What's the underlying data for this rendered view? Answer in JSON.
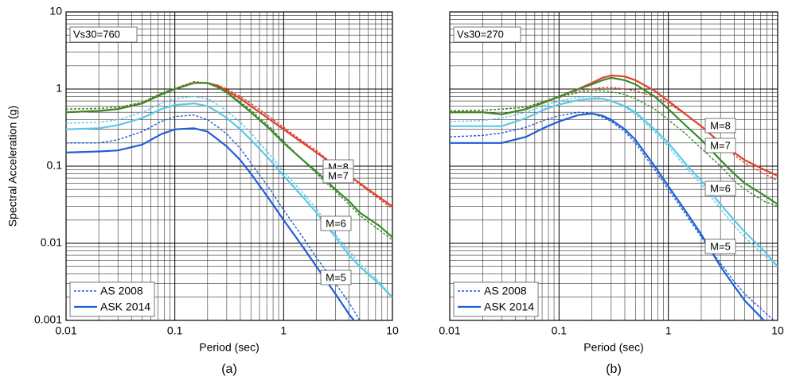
{
  "chart_data": [
    {
      "type": "line",
      "annotation": "Vs30=760",
      "caption": "(a)",
      "xlabel": "Period (sec)",
      "ylabel": "Spectral Acceleration (g)",
      "log_x": true,
      "log_y": true,
      "grid": true,
      "minor_grid": true,
      "ytick_labels": true,
      "xlim": [
        0.01,
        10
      ],
      "ylim": [
        0.001,
        10
      ],
      "xticks": [
        0.01,
        0.1,
        1,
        10
      ],
      "yticks": [
        0.001,
        0.01,
        0.1,
        1,
        10
      ],
      "x": [
        0.01,
        0.02,
        0.03,
        0.05,
        0.075,
        0.1,
        0.15,
        0.2,
        0.25,
        0.3,
        0.4,
        0.5,
        0.75,
        1,
        1.5,
        2,
        3,
        4,
        5,
        7.5,
        10
      ],
      "models": [
        {
          "name": "AS 2008",
          "style": "dashed"
        },
        {
          "name": "ASK 2014",
          "style": "solid"
        }
      ],
      "series": [
        {
          "name": "M=8",
          "color": "#e0412b",
          "values": [
            [
              0.55,
              0.56,
              0.58,
              0.67,
              0.88,
              1.02,
              1.25,
              1.2,
              1.12,
              1.0,
              0.8,
              0.65,
              0.43,
              0.32,
              0.21,
              0.16,
              0.1,
              0.075,
              0.058,
              0.038,
              0.028
            ],
            [
              0.5,
              0.52,
              0.55,
              0.65,
              0.85,
              1.0,
              1.2,
              1.2,
              1.1,
              0.95,
              0.75,
              0.6,
              0.4,
              0.3,
              0.2,
              0.15,
              0.1,
              0.075,
              0.06,
              0.04,
              0.03
            ]
          ]
        },
        {
          "name": "M=7",
          "color": "#3a8a2a",
          "values": [
            [
              0.55,
              0.56,
              0.58,
              0.67,
              0.88,
              1.02,
              1.22,
              1.18,
              1.05,
              0.92,
              0.68,
              0.53,
              0.32,
              0.21,
              0.12,
              0.08,
              0.047,
              0.032,
              0.023,
              0.015,
              0.011
            ],
            [
              0.5,
              0.52,
              0.55,
              0.65,
              0.85,
              1.0,
              1.2,
              1.2,
              1.05,
              0.9,
              0.65,
              0.5,
              0.3,
              0.2,
              0.12,
              0.085,
              0.05,
              0.035,
              0.025,
              0.017,
              0.012
            ]
          ]
        },
        {
          "name": "M=6",
          "color": "#5bc8e8",
          "values": [
            [
              0.36,
              0.37,
              0.4,
              0.5,
              0.65,
              0.75,
              0.8,
              0.75,
              0.62,
              0.52,
              0.37,
              0.27,
              0.14,
              0.085,
              0.045,
              0.028,
              0.013,
              0.008,
              0.0055,
              0.0032,
              0.002
            ],
            [
              0.3,
              0.31,
              0.34,
              0.42,
              0.55,
              0.62,
              0.65,
              0.6,
              0.5,
              0.42,
              0.3,
              0.22,
              0.12,
              0.075,
              0.04,
              0.025,
              0.012,
              0.007,
              0.005,
              0.003,
              0.002
            ]
          ]
        },
        {
          "name": "M=5",
          "color": "#1f5fd6",
          "values": [
            [
              0.2,
              0.2,
              0.22,
              0.28,
              0.38,
              0.44,
              0.46,
              0.4,
              0.32,
              0.26,
              0.17,
              0.11,
              0.05,
              0.027,
              0.012,
              0.0065,
              0.003,
              0.0017,
              0.001,
              0.0005,
              0.0003
            ],
            [
              0.15,
              0.155,
              0.16,
              0.19,
              0.26,
              0.3,
              0.31,
              0.28,
              0.22,
              0.18,
              0.12,
              0.08,
              0.036,
              0.02,
              0.009,
              0.005,
              0.0022,
              0.0012,
              0.0008,
              0.0004,
              0.0002
            ]
          ]
        }
      ]
    },
    {
      "type": "line",
      "annotation": "Vs30=270",
      "caption": "(b)",
      "xlabel": "Period (sec)",
      "log_x": true,
      "log_y": true,
      "grid": true,
      "minor_grid": true,
      "ytick_labels": false,
      "xlim": [
        0.01,
        10
      ],
      "ylim": [
        0.001,
        10
      ],
      "xticks": [
        0.01,
        0.1,
        1,
        10
      ],
      "yticks": [
        0.001,
        0.01,
        0.1,
        1,
        10
      ],
      "x": [
        0.01,
        0.02,
        0.03,
        0.05,
        0.075,
        0.1,
        0.15,
        0.2,
        0.25,
        0.3,
        0.4,
        0.5,
        0.75,
        1,
        1.5,
        2,
        3,
        4,
        5,
        7.5,
        10
      ],
      "models": [
        {
          "name": "AS 2008",
          "style": "dashed"
        },
        {
          "name": "ASK 2014",
          "style": "solid"
        }
      ],
      "series": [
        {
          "name": "M=8",
          "color": "#e0412b",
          "values": [
            [
              0.52,
              0.53,
              0.55,
              0.58,
              0.7,
              0.8,
              0.95,
              1.0,
              1.05,
              1.05,
              1.0,
              0.95,
              0.8,
              0.65,
              0.45,
              0.33,
              0.2,
              0.14,
              0.11,
              0.08,
              0.065
            ],
            [
              0.5,
              0.5,
              0.47,
              0.55,
              0.68,
              0.8,
              1.0,
              1.2,
              1.4,
              1.5,
              1.45,
              1.3,
              0.95,
              0.7,
              0.45,
              0.33,
              0.2,
              0.15,
              0.12,
              0.09,
              0.075
            ]
          ]
        },
        {
          "name": "M=7",
          "color": "#3a8a2a",
          "values": [
            [
              0.52,
              0.53,
              0.55,
              0.58,
              0.7,
              0.78,
              0.9,
              0.95,
              0.95,
              0.92,
              0.85,
              0.75,
              0.55,
              0.4,
              0.25,
              0.17,
              0.1,
              0.065,
              0.05,
              0.035,
              0.03
            ],
            [
              0.5,
              0.5,
              0.47,
              0.55,
              0.68,
              0.8,
              1.0,
              1.15,
              1.3,
              1.4,
              1.3,
              1.15,
              0.8,
              0.55,
              0.32,
              0.22,
              0.12,
              0.08,
              0.06,
              0.042,
              0.032
            ]
          ]
        },
        {
          "name": "M=6",
          "color": "#5bc8e8",
          "values": [
            [
              0.38,
              0.39,
              0.42,
              0.5,
              0.62,
              0.7,
              0.78,
              0.8,
              0.75,
              0.7,
              0.58,
              0.47,
              0.28,
              0.18,
              0.09,
              0.058,
              0.028,
              0.017,
              0.012,
              0.007,
              0.005
            ],
            [
              0.33,
              0.33,
              0.33,
              0.42,
              0.55,
              0.63,
              0.72,
              0.75,
              0.75,
              0.7,
              0.6,
              0.5,
              0.3,
              0.2,
              0.1,
              0.065,
              0.032,
              0.02,
              0.014,
              0.008,
              0.005
            ]
          ]
        },
        {
          "name": "M=5",
          "color": "#1f5fd6",
          "values": [
            [
              0.24,
              0.25,
              0.27,
              0.32,
              0.4,
              0.45,
              0.5,
              0.48,
              0.43,
              0.38,
              0.28,
              0.2,
              0.09,
              0.05,
              0.022,
              0.012,
              0.0055,
              0.0032,
              0.0022,
              0.0013,
              0.0009
            ],
            [
              0.2,
              0.2,
              0.2,
              0.24,
              0.32,
              0.38,
              0.46,
              0.48,
              0.45,
              0.4,
              0.3,
              0.22,
              0.1,
              0.055,
              0.024,
              0.013,
              0.005,
              0.0028,
              0.0018,
              0.001,
              0.0006
            ]
          ]
        }
      ]
    }
  ]
}
